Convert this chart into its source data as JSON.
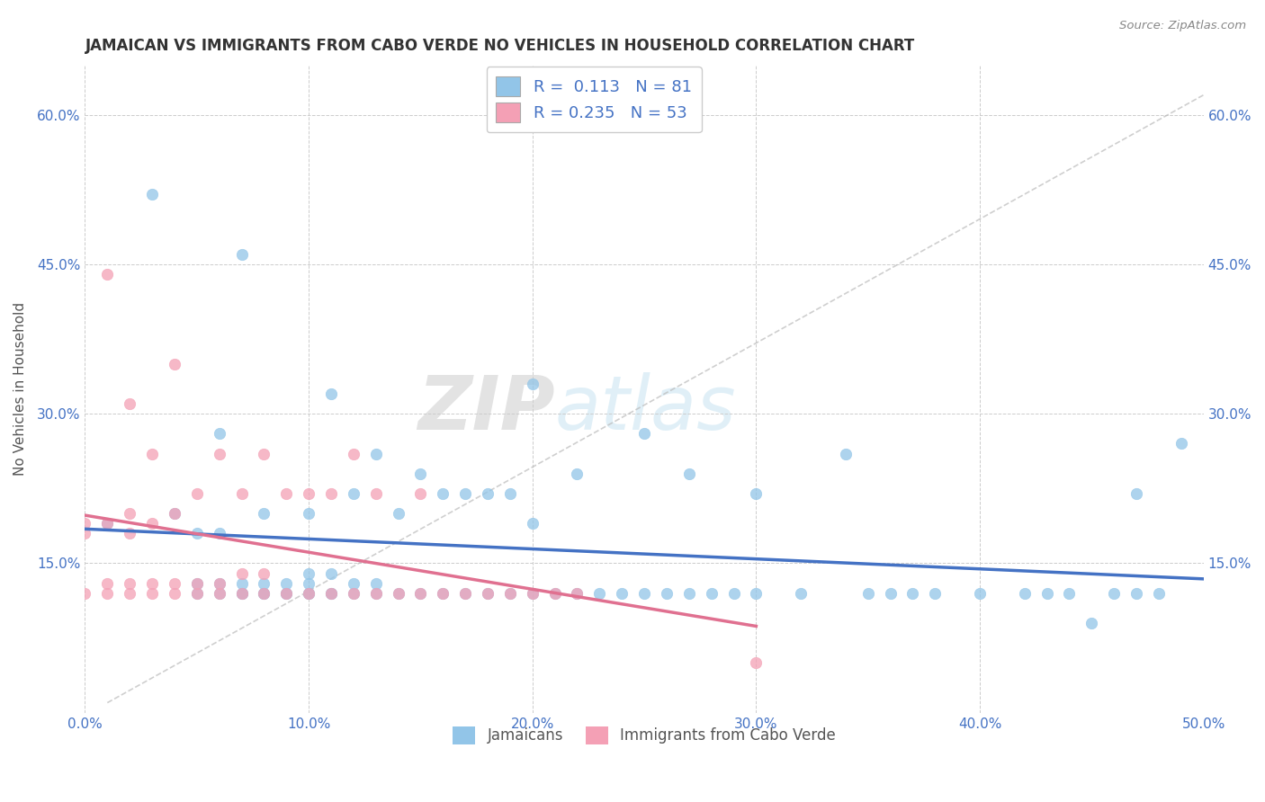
{
  "title": "JAMAICAN VS IMMIGRANTS FROM CABO VERDE NO VEHICLES IN HOUSEHOLD CORRELATION CHART",
  "source": "Source: ZipAtlas.com",
  "xlabel_jamaicans": "Jamaicans",
  "xlabel_caboverde": "Immigrants from Cabo Verde",
  "ylabel": "No Vehicles in Household",
  "xlim": [
    0.0,
    0.5
  ],
  "ylim": [
    0.0,
    0.65
  ],
  "xticks": [
    0.0,
    0.1,
    0.2,
    0.3,
    0.4,
    0.5
  ],
  "yticks": [
    0.0,
    0.15,
    0.3,
    0.45,
    0.6
  ],
  "xticklabels": [
    "0.0%",
    "10.0%",
    "20.0%",
    "30.0%",
    "40.0%",
    "50.0%"
  ],
  "yticklabels": [
    "",
    "15.0%",
    "30.0%",
    "45.0%",
    "60.0%"
  ],
  "r_jamaican": 0.113,
  "n_jamaican": 81,
  "r_caboverde": 0.235,
  "n_caboverde": 53,
  "color_jamaican": "#92C5E8",
  "color_caboverde": "#F4A0B5",
  "line_color_jamaican": "#4472C4",
  "line_color_caboverde": "#E07090",
  "watermark_color": "#DDDDDD",
  "jamaican_x": [
    0.01,
    0.03,
    0.04,
    0.05,
    0.05,
    0.05,
    0.06,
    0.06,
    0.06,
    0.06,
    0.07,
    0.07,
    0.07,
    0.07,
    0.08,
    0.08,
    0.08,
    0.08,
    0.09,
    0.09,
    0.09,
    0.1,
    0.1,
    0.1,
    0.1,
    0.1,
    0.11,
    0.11,
    0.11,
    0.11,
    0.12,
    0.12,
    0.12,
    0.13,
    0.13,
    0.13,
    0.14,
    0.14,
    0.15,
    0.15,
    0.16,
    0.16,
    0.17,
    0.17,
    0.18,
    0.18,
    0.19,
    0.19,
    0.2,
    0.2,
    0.2,
    0.21,
    0.22,
    0.22,
    0.23,
    0.24,
    0.25,
    0.25,
    0.26,
    0.27,
    0.27,
    0.28,
    0.29,
    0.3,
    0.3,
    0.32,
    0.34,
    0.35,
    0.36,
    0.37,
    0.38,
    0.4,
    0.42,
    0.43,
    0.44,
    0.45,
    0.46,
    0.47,
    0.47,
    0.48,
    0.49
  ],
  "jamaican_y": [
    0.19,
    0.52,
    0.2,
    0.18,
    0.12,
    0.13,
    0.12,
    0.13,
    0.18,
    0.28,
    0.12,
    0.12,
    0.13,
    0.46,
    0.12,
    0.12,
    0.13,
    0.2,
    0.12,
    0.12,
    0.13,
    0.12,
    0.12,
    0.13,
    0.14,
    0.2,
    0.12,
    0.12,
    0.14,
    0.32,
    0.12,
    0.13,
    0.22,
    0.12,
    0.13,
    0.26,
    0.12,
    0.2,
    0.12,
    0.24,
    0.12,
    0.22,
    0.12,
    0.22,
    0.12,
    0.22,
    0.12,
    0.22,
    0.12,
    0.19,
    0.33,
    0.12,
    0.12,
    0.24,
    0.12,
    0.12,
    0.12,
    0.28,
    0.12,
    0.12,
    0.24,
    0.12,
    0.12,
    0.12,
    0.22,
    0.12,
    0.26,
    0.12,
    0.12,
    0.12,
    0.12,
    0.12,
    0.12,
    0.12,
    0.12,
    0.09,
    0.12,
    0.12,
    0.22,
    0.12,
    0.27
  ],
  "caboverde_x": [
    0.0,
    0.0,
    0.0,
    0.01,
    0.01,
    0.01,
    0.01,
    0.02,
    0.02,
    0.02,
    0.02,
    0.02,
    0.03,
    0.03,
    0.03,
    0.03,
    0.04,
    0.04,
    0.04,
    0.04,
    0.05,
    0.05,
    0.05,
    0.06,
    0.06,
    0.06,
    0.07,
    0.07,
    0.07,
    0.08,
    0.08,
    0.08,
    0.09,
    0.09,
    0.1,
    0.1,
    0.11,
    0.11,
    0.12,
    0.12,
    0.13,
    0.13,
    0.14,
    0.15,
    0.15,
    0.16,
    0.17,
    0.18,
    0.19,
    0.2,
    0.21,
    0.22,
    0.3
  ],
  "caboverde_y": [
    0.18,
    0.12,
    0.19,
    0.12,
    0.13,
    0.19,
    0.44,
    0.12,
    0.13,
    0.18,
    0.2,
    0.31,
    0.12,
    0.13,
    0.19,
    0.26,
    0.12,
    0.13,
    0.2,
    0.35,
    0.12,
    0.13,
    0.22,
    0.12,
    0.13,
    0.26,
    0.12,
    0.14,
    0.22,
    0.12,
    0.14,
    0.26,
    0.12,
    0.22,
    0.12,
    0.22,
    0.12,
    0.22,
    0.12,
    0.26,
    0.12,
    0.22,
    0.12,
    0.12,
    0.22,
    0.12,
    0.12,
    0.12,
    0.12,
    0.12,
    0.12,
    0.12,
    0.05
  ]
}
